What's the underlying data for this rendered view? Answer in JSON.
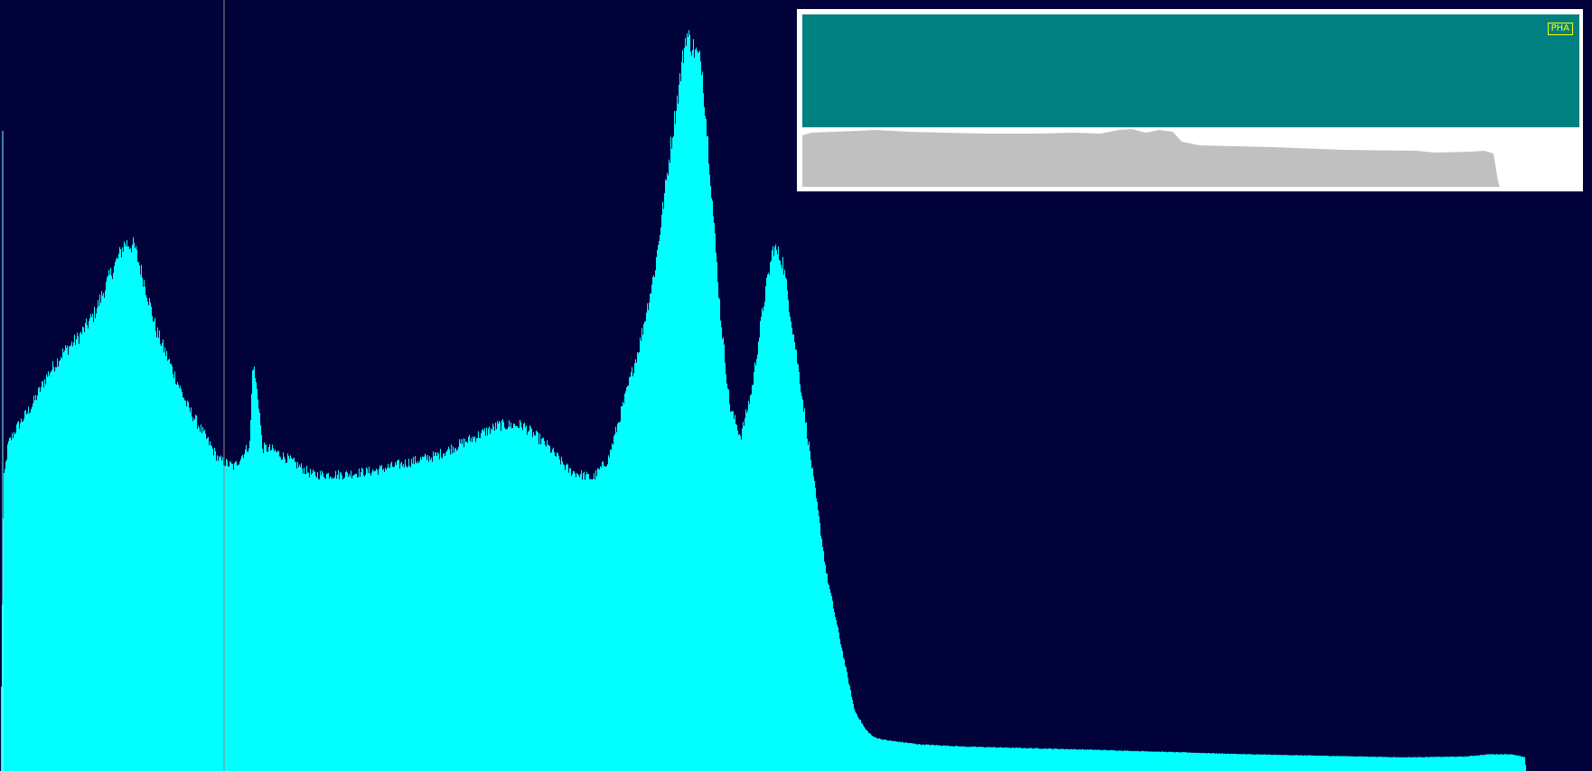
{
  "colors": {
    "background": "#02023a",
    "spectrum_fill": "#00ffff",
    "cursor_line": "#8a8a8a",
    "overview_band": "#008080",
    "overview_fill": "#c0c0c0",
    "badge": "#ffff00"
  },
  "overview": {
    "mode_label": "PHA"
  },
  "chart_data": {
    "type": "area",
    "title": "",
    "xlabel": "",
    "ylabel": "",
    "xlim": [
      0,
      1000
    ],
    "ylim": [
      0,
      1000
    ],
    "grid": false,
    "cursor_x": 140,
    "series": [
      {
        "x": [
          0,
          2,
          5,
          10,
          20,
          30,
          40,
          50,
          60,
          70,
          80,
          86,
          94,
          100,
          110,
          120,
          130,
          140,
          150,
          160,
          162,
          166,
          168,
          170,
          175,
          185,
          200,
          220,
          240,
          260,
          280,
          300,
          320,
          335,
          350,
          365,
          380,
          390,
          398,
          410,
          420,
          430,
          440,
          450,
          455,
          462,
          468,
          475,
          482,
          490,
          496,
          502,
          510,
          520,
          530,
          540,
          548,
          555,
          560,
          565,
          570,
          578,
          590,
          620,
          700,
          800,
          900,
          940,
          955,
          970,
          978,
          979,
          1000
        ],
        "y": [
          0,
          380,
          430,
          450,
          480,
          520,
          550,
          570,
          600,
          650,
          695,
          690,
          630,
          580,
          530,
          480,
          445,
          410,
          400,
          430,
          540,
          480,
          425,
          425,
          422,
          410,
          390,
          390,
          395,
          405,
          415,
          435,
          455,
          455,
          430,
          395,
          385,
          410,
          470,
          560,
          660,
          820,
          970,
          930,
          800,
          600,
          480,
          440,
          500,
          620,
          690,
          670,
          560,
          410,
          260,
          160,
          80,
          55,
          45,
          42,
          40,
          38,
          35,
          32,
          28,
          22,
          18,
          19,
          22,
          22,
          18,
          0,
          0
        ]
      }
    ]
  }
}
